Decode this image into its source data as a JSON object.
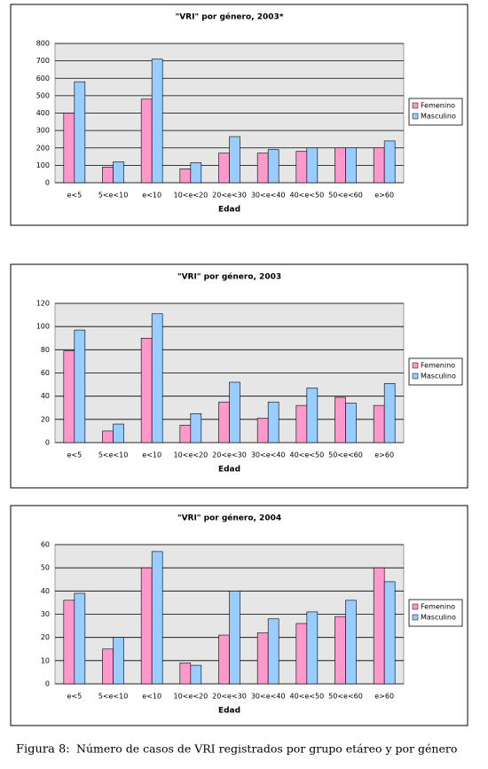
{
  "chart_data": [
    {
      "type": "bar",
      "title": "\"VRI\" por género, 2003*",
      "x_label": "Edad",
      "categories": [
        "e<5",
        "5<e<10",
        "e<10",
        "10<e<20",
        "20<e<30",
        "30<e<40",
        "40<e<50",
        "50<e<60",
        "e>60"
      ],
      "series": [
        {
          "name": "Femenino",
          "color": "#ff99cc",
          "values": [
            400,
            90,
            480,
            80,
            170,
            170,
            180,
            200,
            200
          ]
        },
        {
          "name": "Masculino",
          "color": "#99ccff",
          "values": [
            580,
            120,
            710,
            115,
            265,
            190,
            200,
            200,
            240
          ]
        }
      ],
      "ylim": [
        0,
        800
      ],
      "yticks": [
        0,
        100,
        200,
        300,
        400,
        500,
        600,
        700,
        800
      ],
      "grid": true,
      "legend": "right"
    },
    {
      "type": "bar",
      "title": "\"VRI\" por género, 2003",
      "x_label": "Edad",
      "categories": [
        "e<5",
        "5<e<10",
        "e<10",
        "10<e<20",
        "20<e<30",
        "30<e<40",
        "40<e<50",
        "50<e<60",
        "e>60"
      ],
      "series": [
        {
          "name": "Femenino",
          "color": "#ff99cc",
          "values": [
            79,
            10,
            90,
            15,
            35,
            21,
            32,
            39,
            32
          ]
        },
        {
          "name": "Masculino",
          "color": "#99ccff",
          "values": [
            97,
            16,
            111,
            25,
            52,
            35,
            47,
            34,
            51
          ]
        }
      ],
      "ylim": [
        0,
        120
      ],
      "yticks": [
        0,
        20,
        40,
        60,
        80,
        100,
        120
      ],
      "grid": true,
      "legend": "right"
    },
    {
      "type": "bar",
      "title": "\"VRI\"   por género, 2004",
      "x_label": "Edad",
      "categories": [
        "e<5",
        "5<e<10",
        "e<10",
        "10<e<20",
        "20<e<30",
        "30<e<40",
        "40<e<50",
        "50<e<60",
        "e>60"
      ],
      "series": [
        {
          "name": "Femenino",
          "color": "#ff99cc",
          "values": [
            36,
            15,
            50,
            9,
            21,
            22,
            26,
            29,
            50
          ]
        },
        {
          "name": "Masculino",
          "color": "#99ccff",
          "values": [
            39,
            20,
            57,
            8,
            40,
            28,
            31,
            36,
            44
          ]
        }
      ],
      "ylim": [
        0,
        60
      ],
      "yticks": [
        0,
        10,
        20,
        30,
        40,
        50,
        60
      ],
      "grid": true,
      "legend": "right"
    }
  ],
  "caption": {
    "label": "Figura 8:",
    "text": "Número de casos de VRI registrados por grupo etáreo y por género"
  }
}
